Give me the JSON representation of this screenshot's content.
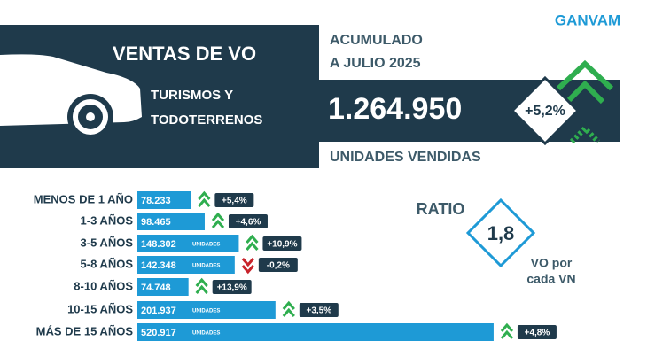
{
  "logo": "GANVAM",
  "header": {
    "title": "VENTAS DE VO",
    "period": [
      "ACUMULADO",
      "A JULIO 2025"
    ],
    "segment": [
      "TURISMOS Y",
      "TODOTERRENOS"
    ],
    "total": "1.264.950",
    "total_caption": "UNIDADES VENDIDAS",
    "total_change": "+5,2%"
  },
  "ratio": {
    "label": "RATIO",
    "value": "1,8",
    "caption": [
      "VO por",
      "cada VN"
    ]
  },
  "chart_data": {
    "type": "bar",
    "orientation": "horizontal",
    "categories": [
      "MENOS DE 1 AÑO",
      "1-3 AÑOS",
      "3-5 AÑOS",
      "5-8 AÑOS",
      "8-10 AÑOS",
      "10-15 AÑOS",
      "MÁS DE 15 AÑOS"
    ],
    "values": [
      78233,
      98465,
      148302,
      142348,
      74748,
      201937,
      520917
    ],
    "value_labels": [
      "78.233",
      "98.465",
      "148.302",
      "142.348",
      "74.748",
      "201.937",
      "520.917"
    ],
    "unit_label": "UNIDADES",
    "color": "#1e9ad6",
    "xlim": [
      0,
      521000
    ],
    "changes": [
      5.4,
      4.6,
      10.9,
      -0.2,
      13.9,
      3.5,
      4.8
    ],
    "change_labels": [
      "+5,4%",
      "+4,6%",
      "+10,9%",
      "-0,2%",
      "+13,9%",
      "+3,5%",
      "+4,8%"
    ]
  }
}
